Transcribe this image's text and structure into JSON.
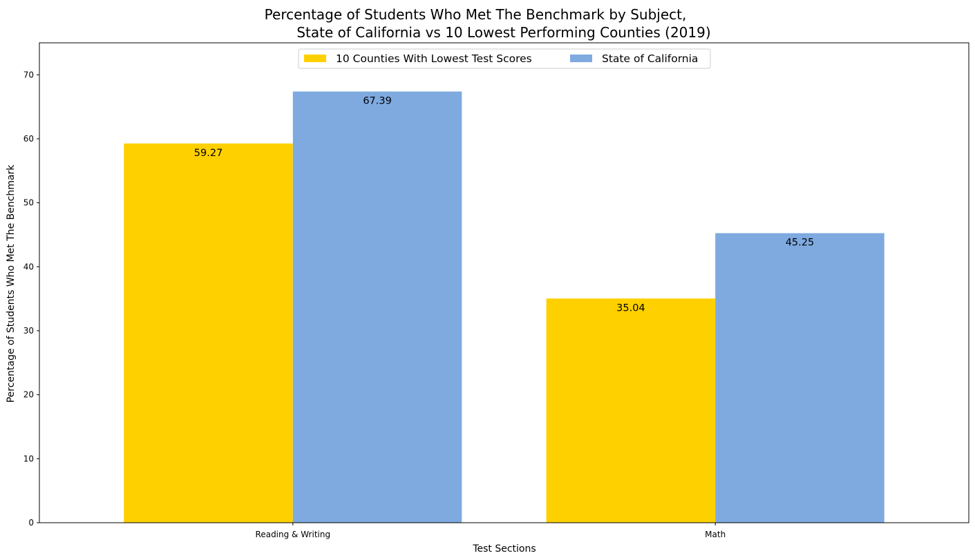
{
  "chart_data": {
    "type": "bar",
    "title": [
      "Percentage of Students Who Met The Benchmark by Subject,",
      "State of California vs 10 Lowest Performing Counties (2019)"
    ],
    "xlabel": "Test Sections",
    "ylabel": "Percentage of Students Who Met The Benchmark",
    "categories": [
      "Reading & Writing",
      "Math"
    ],
    "series": [
      {
        "name": "10 Counties With Lowest Test Scores",
        "values": [
          59.27,
          35.04
        ],
        "color": "#ffd000",
        "labels": [
          "59.27",
          "35.04"
        ]
      },
      {
        "name": "State of California",
        "values": [
          67.39,
          45.25
        ],
        "color": "#7eaae0",
        "labels": [
          "67.39",
          "45.25"
        ]
      }
    ],
    "ylim": [
      0,
      75
    ],
    "yticks": [
      0,
      10,
      20,
      30,
      40,
      50,
      60,
      70
    ],
    "legend_position": "top-center",
    "grid": false
  }
}
